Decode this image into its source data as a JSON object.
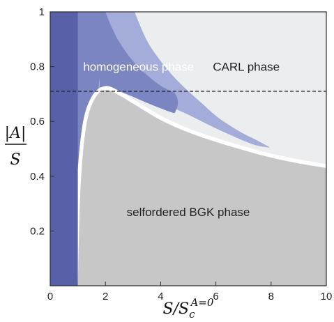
{
  "chart_data": {
    "type": "area",
    "xlim": [
      0,
      10
    ],
    "ylim": [
      0,
      1
    ],
    "x_ticks": [
      "0",
      "2",
      "4",
      "6",
      "8",
      "10"
    ],
    "y_ticks": [
      "0.2",
      "0.4",
      "0.6",
      "0.8",
      "1"
    ],
    "xlabel": {
      "base": "S/S",
      "sub": "c",
      "sup": "A=0"
    },
    "ylabel": {
      "numerator": "|A|",
      "denominator": "S"
    },
    "reference_line": {
      "y": 0.71,
      "style": "dashed"
    },
    "regions": [
      {
        "name": "CARL phase",
        "color": "#ebedee",
        "label_pos": [
          7.1,
          0.8
        ]
      },
      {
        "name": "homogeneous phase",
        "color": "#7a85c1",
        "label_pos": [
          3.2,
          0.8
        ],
        "label_color": "#ffffff"
      },
      {
        "name": "selfordered BGK phase",
        "color": "#c6c7c6",
        "label_pos": [
          5.0,
          0.27
        ]
      }
    ],
    "homogeneous_strip": {
      "x_range": [
        0,
        1
      ],
      "color": "#5861a8"
    },
    "bgk_boundary": {
      "x": [
        1,
        1.1,
        1.3,
        1.6,
        2.0,
        2.5,
        3,
        4,
        5,
        6,
        7,
        8,
        9,
        10
      ],
      "y": [
        0,
        0.36,
        0.58,
        0.68,
        0.715,
        0.695,
        0.665,
        0.605,
        0.56,
        0.525,
        0.495,
        0.468,
        0.447,
        0.43
      ]
    },
    "outer_light_band": {
      "color": "#a4add9",
      "upper_x": [
        3.05,
        3.5,
        4,
        4.5,
        5,
        5.5,
        6,
        6.5,
        7,
        7.5,
        7.95
      ],
      "upper_y": [
        1.0,
        0.895,
        0.82,
        0.76,
        0.71,
        0.665,
        0.62,
        0.585,
        0.555,
        0.53,
        0.505
      ],
      "lower_x": [
        7.95,
        7.5,
        7,
        6.5,
        6,
        5.5,
        5,
        4.5,
        4,
        3.5,
        3,
        2.5,
        2.0,
        1.75
      ],
      "lower_y": [
        0.505,
        0.512,
        0.53,
        0.552,
        0.575,
        0.6,
        0.625,
        0.648,
        0.672,
        0.695,
        0.712,
        0.725,
        0.735,
        0.72
      ]
    },
    "inner_band": {
      "color": "#7a85c1",
      "upper_x": [
        2.0,
        2.2,
        2.5,
        3.0,
        3.5,
        4.0,
        4.5
      ],
      "upper_y": [
        1.0,
        0.95,
        0.89,
        0.82,
        0.77,
        0.73,
        0.705
      ],
      "lower_x": [
        4.5,
        4.25,
        4.0,
        3.5,
        3.0,
        2.5,
        2.2,
        2.0,
        1.8
      ],
      "lower_y": [
        0.63,
        0.638,
        0.648,
        0.668,
        0.69,
        0.71,
        0.72,
        0.728,
        0.72
      ]
    },
    "white_gap": {
      "color": "#ffffff"
    }
  }
}
